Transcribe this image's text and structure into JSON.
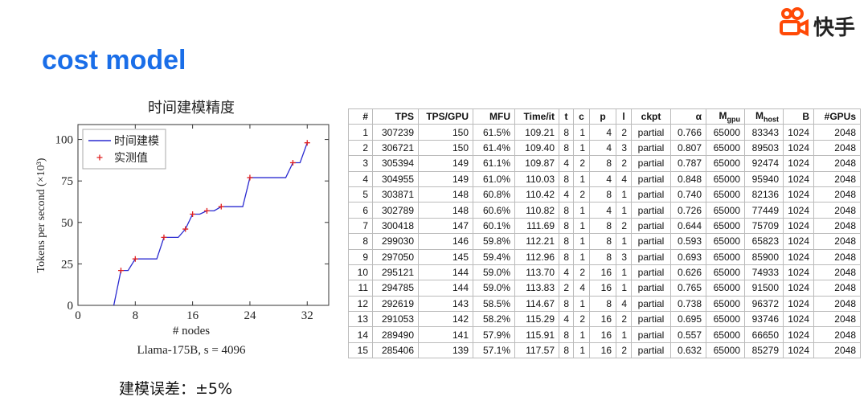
{
  "logo": "快手",
  "title": "cost model",
  "note": "建模误差：±5%",
  "chart_data": {
    "type": "line",
    "title": "时间建模精度",
    "xlabel": "# nodes",
    "ylabel": "Tokens per second (×10³)",
    "caption": "Llama-175B, s = 4096",
    "xlim": [
      0,
      35
    ],
    "ylim": [
      0,
      109
    ],
    "xticks": [
      0,
      8,
      16,
      24,
      32
    ],
    "yticks": [
      0,
      25,
      50,
      75,
      100
    ],
    "legend": "upper left",
    "series": [
      {
        "name": "时间建模",
        "color": "#2a2ad0",
        "style": "line",
        "x": [
          5,
          6,
          7,
          8,
          11,
          12,
          14,
          15,
          16,
          17,
          18,
          19,
          20,
          23,
          24,
          29,
          30,
          31,
          32
        ],
        "values": [
          0,
          21,
          21,
          28,
          28,
          41,
          41,
          46,
          55,
          55,
          57,
          57,
          59.5,
          59.5,
          77,
          77,
          86,
          86,
          98
        ]
      },
      {
        "name": "实测值",
        "color": "#e02020",
        "style": "marker",
        "x": [
          6,
          8,
          12,
          15,
          16,
          18,
          20,
          24,
          30,
          32
        ],
        "values": [
          21,
          28,
          41,
          46,
          55,
          57,
          59.5,
          77,
          86,
          98
        ]
      }
    ]
  },
  "table": {
    "headers": [
      "#",
      "TPS",
      "TPS/GPU",
      "MFU",
      "Time/it",
      "t",
      "c",
      "p",
      "l",
      "ckpt",
      "α",
      {
        "text": "M",
        "sub": "gpu"
      },
      {
        "text": "M",
        "sub": "host"
      },
      "B",
      "#GPUs"
    ],
    "rows": [
      [
        "1",
        "307239",
        "150",
        "61.5%",
        "109.21",
        "8",
        "1",
        "4",
        "2",
        "partial",
        "0.766",
        "65000",
        "83343",
        "1024",
        "2048"
      ],
      [
        "2",
        "306721",
        "150",
        "61.4%",
        "109.40",
        "8",
        "1",
        "4",
        "3",
        "partial",
        "0.807",
        "65000",
        "89503",
        "1024",
        "2048"
      ],
      [
        "3",
        "305394",
        "149",
        "61.1%",
        "109.87",
        "4",
        "2",
        "8",
        "2",
        "partial",
        "0.787",
        "65000",
        "92474",
        "1024",
        "2048"
      ],
      [
        "4",
        "304955",
        "149",
        "61.0%",
        "110.03",
        "8",
        "1",
        "4",
        "4",
        "partial",
        "0.848",
        "65000",
        "95940",
        "1024",
        "2048"
      ],
      [
        "5",
        "303871",
        "148",
        "60.8%",
        "110.42",
        "4",
        "2",
        "8",
        "1",
        "partial",
        "0.740",
        "65000",
        "82136",
        "1024",
        "2048"
      ],
      [
        "6",
        "302789",
        "148",
        "60.6%",
        "110.82",
        "8",
        "1",
        "4",
        "1",
        "partial",
        "0.726",
        "65000",
        "77449",
        "1024",
        "2048"
      ],
      [
        "7",
        "300418",
        "147",
        "60.1%",
        "111.69",
        "8",
        "1",
        "8",
        "2",
        "partial",
        "0.644",
        "65000",
        "75709",
        "1024",
        "2048"
      ],
      [
        "8",
        "299030",
        "146",
        "59.8%",
        "112.21",
        "8",
        "1",
        "8",
        "1",
        "partial",
        "0.593",
        "65000",
        "65823",
        "1024",
        "2048"
      ],
      [
        "9",
        "297050",
        "145",
        "59.4%",
        "112.96",
        "8",
        "1",
        "8",
        "3",
        "partial",
        "0.693",
        "65000",
        "85900",
        "1024",
        "2048"
      ],
      [
        "10",
        "295121",
        "144",
        "59.0%",
        "113.70",
        "4",
        "2",
        "16",
        "1",
        "partial",
        "0.626",
        "65000",
        "74933",
        "1024",
        "2048"
      ],
      [
        "11",
        "294785",
        "144",
        "59.0%",
        "113.83",
        "2",
        "4",
        "16",
        "1",
        "partial",
        "0.765",
        "65000",
        "91500",
        "1024",
        "2048"
      ],
      [
        "12",
        "292619",
        "143",
        "58.5%",
        "114.67",
        "8",
        "1",
        "8",
        "4",
        "partial",
        "0.738",
        "65000",
        "96372",
        "1024",
        "2048"
      ],
      [
        "13",
        "291053",
        "142",
        "58.2%",
        "115.29",
        "4",
        "2",
        "16",
        "2",
        "partial",
        "0.695",
        "65000",
        "93746",
        "1024",
        "2048"
      ],
      [
        "14",
        "289490",
        "141",
        "57.9%",
        "115.91",
        "8",
        "1",
        "16",
        "1",
        "partial",
        "0.557",
        "65000",
        "66650",
        "1024",
        "2048"
      ],
      [
        "15",
        "285406",
        "139",
        "57.1%",
        "117.57",
        "8",
        "1",
        "16",
        "2",
        "partial",
        "0.632",
        "65000",
        "85279",
        "1024",
        "2048"
      ]
    ]
  }
}
